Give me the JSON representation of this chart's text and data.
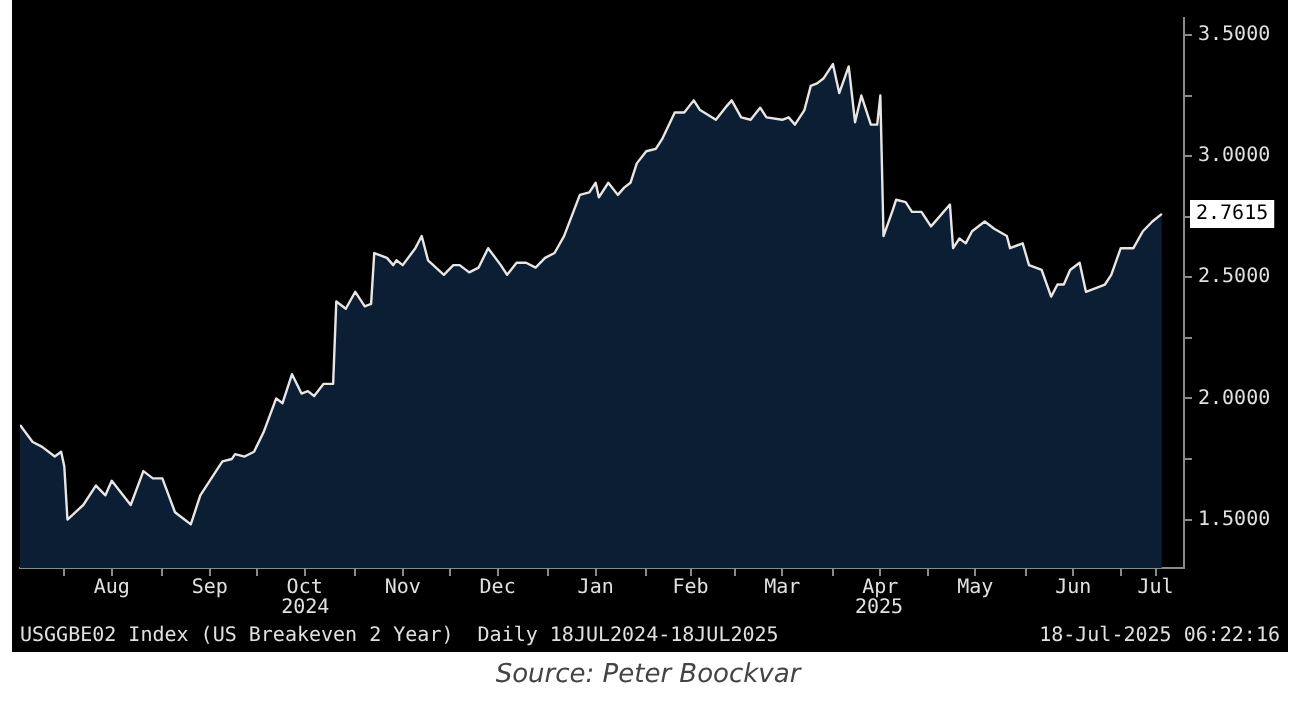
{
  "chart_data": {
    "type": "area",
    "annotations": [
      "2024",
      "2025",
      "USGGBE02 Index (US Breakeven 2 Year)  Daily 18JUL2024-18JUL2025",
      "18-Jul-2025 06:22:16",
      "Source: Peter Boockvar"
    ],
    "x": [
      "2024-07-18",
      "2024-07-22",
      "2024-07-25",
      "2024-07-29",
      "2024-07-31",
      "2024-08-01",
      "2024-08-02",
      "2024-08-07",
      "2024-08-11",
      "2024-08-14",
      "2024-08-16",
      "2024-08-22",
      "2024-08-26",
      "2024-08-29",
      "2024-09-01",
      "2024-09-05",
      "2024-09-08",
      "2024-09-10",
      "2024-09-13",
      "2024-09-17",
      "2024-09-20",
      "2024-09-23",
      "2024-09-24",
      "2024-09-27",
      "2024-09-30",
      "2024-10-03",
      "2024-10-07",
      "2024-10-09",
      "2024-10-12",
      "2024-10-15",
      "2024-10-17",
      "2024-10-19",
      "2024-10-22",
      "2024-10-25",
      "2024-10-26",
      "2024-10-29",
      "2024-11-01",
      "2024-11-04",
      "2024-11-06",
      "2024-11-07",
      "2024-11-11",
      "2024-11-13",
      "2024-11-14",
      "2024-11-16",
      "2024-11-20",
      "2024-11-22",
      "2024-11-24",
      "2024-11-29",
      "2024-12-02",
      "2024-12-04",
      "2024-12-07",
      "2024-12-10",
      "2024-12-13",
      "2024-12-17",
      "2024-12-19",
      "2024-12-22",
      "2024-12-25",
      "2024-12-28",
      "2024-12-31",
      "2025-01-03",
      "2025-01-06",
      "2025-01-11",
      "2025-01-14",
      "2025-01-16",
      "2025-01-17",
      "2025-01-20",
      "2025-01-23",
      "2025-01-25",
      "2025-01-27",
      "2025-01-29",
      "2025-02-01",
      "2025-02-04",
      "2025-02-06",
      "2025-02-10",
      "2025-02-13",
      "2025-02-16",
      "2025-02-18",
      "2025-02-23",
      "2025-02-26",
      "2025-02-28",
      "2025-03-03",
      "2025-03-06",
      "2025-03-09",
      "2025-03-11",
      "2025-03-16",
      "2025-03-18",
      "2025-03-20",
      "2025-03-23",
      "2025-03-25",
      "2025-03-27",
      "2025-03-29",
      "2025-04-01",
      "2025-04-03",
      "2025-04-06",
      "2025-04-08",
      "2025-04-10",
      "2025-04-13",
      "2025-04-15",
      "2025-04-16",
      "2025-04-17",
      "2025-04-20",
      "2025-04-21",
      "2025-04-24",
      "2025-04-26",
      "2025-04-29",
      "2025-05-02",
      "2025-05-04",
      "2025-05-08",
      "2025-05-09",
      "2025-05-11",
      "2025-05-13",
      "2025-05-15",
      "2025-05-19",
      "2025-05-22",
      "2025-05-26",
      "2025-05-27",
      "2025-05-31",
      "2025-06-02",
      "2025-06-06",
      "2025-06-09",
      "2025-06-11",
      "2025-06-13",
      "2025-06-15",
      "2025-06-18",
      "2025-06-20",
      "2025-06-26",
      "2025-06-28",
      "2025-07-01",
      "2025-07-05",
      "2025-07-08",
      "2025-07-11",
      "2025-07-14"
    ],
    "series": [
      {
        "color": "#0b1e33",
        "values": [
          1.89,
          1.82,
          1.8,
          1.76,
          1.78,
          1.72,
          1.5,
          1.56,
          1.64,
          1.6,
          1.66,
          1.56,
          1.7,
          1.67,
          1.67,
          1.53,
          1.5,
          1.48,
          1.6,
          1.68,
          1.74,
          1.75,
          1.77,
          1.76,
          1.78,
          1.86,
          2.0,
          1.98,
          2.1,
          2.02,
          2.03,
          2.01,
          2.06,
          2.06,
          2.4,
          2.37,
          2.44,
          2.38,
          2.39,
          2.6,
          2.58,
          2.55,
          2.57,
          2.55,
          2.62,
          2.67,
          2.57,
          2.51,
          2.55,
          2.55,
          2.52,
          2.54,
          2.62,
          2.55,
          2.51,
          2.56,
          2.56,
          2.54,
          2.58,
          2.6,
          2.67,
          2.84,
          2.85,
          2.89,
          2.83,
          2.89,
          2.84,
          2.87,
          2.89,
          2.97,
          3.02,
          3.03,
          3.07,
          3.18,
          3.18,
          3.23,
          3.19,
          3.15,
          3.2,
          3.23,
          3.16,
          3.15,
          3.2,
          3.16,
          3.15,
          3.16,
          3.13,
          3.19,
          3.29,
          3.3,
          3.32,
          3.38,
          3.26,
          3.37,
          3.14,
          3.25,
          3.13,
          3.13,
          3.25,
          2.67,
          2.78,
          2.82,
          2.81,
          2.77,
          2.77,
          2.71,
          2.74,
          2.8,
          2.62,
          2.66,
          2.64,
          2.69,
          2.73,
          2.7,
          2.67,
          2.62,
          2.64,
          2.55,
          2.53,
          2.42,
          2.47,
          2.47,
          2.53,
          2.56,
          2.44,
          2.47,
          2.51,
          2.62,
          2.62,
          2.69,
          2.73,
          2.7615
        ],
        "value_labels": [
          null,
          null,
          null,
          null,
          null,
          null,
          null,
          null,
          null,
          null,
          null,
          null,
          null,
          null,
          null,
          null,
          null,
          null,
          null,
          null,
          null,
          null,
          null,
          null,
          null,
          null,
          null,
          null,
          null,
          null,
          null,
          null,
          null,
          null,
          null,
          null,
          null,
          null,
          null,
          null,
          null,
          null,
          null,
          null,
          null,
          null,
          null,
          null,
          null,
          null,
          null,
          null,
          null,
          null,
          null,
          null,
          null,
          null,
          null,
          null,
          null,
          null,
          null,
          null,
          null,
          null,
          null,
          null,
          null,
          null,
          null,
          null,
          null,
          null,
          null,
          null,
          null,
          null,
          null,
          null,
          null,
          null,
          null,
          null,
          null,
          null,
          null,
          null,
          null,
          null,
          null,
          null,
          null,
          null,
          null,
          null,
          null,
          null,
          null,
          null,
          null,
          null,
          null,
          null,
          null,
          null,
          null,
          null,
          null,
          null,
          null,
          null,
          null,
          null,
          null,
          null,
          null,
          null,
          null,
          null,
          null,
          null,
          null,
          null,
          null,
          null,
          null,
          null,
          null,
          null,
          null,
          "2.7615"
        ]
      }
    ],
    "xlim": [
      "2024-07-18",
      "2025-07-21"
    ],
    "xticks": [
      {
        "value": "2024-08-01",
        "label": null
      },
      {
        "value": "2024-08-16",
        "label": "Aug"
      },
      {
        "value": "2024-09-01",
        "label": null
      },
      {
        "value": "2024-09-16",
        "label": "Sep"
      },
      {
        "value": "2024-10-01",
        "label": null
      },
      {
        "value": "2024-10-16",
        "label": "Oct"
      },
      {
        "value": "2024-11-01",
        "label": null
      },
      {
        "value": "2024-11-16",
        "label": "Nov"
      },
      {
        "value": "2024-12-01",
        "label": null
      },
      {
        "value": "2024-12-16",
        "label": "Dec"
      },
      {
        "value": "2025-01-01",
        "label": null
      },
      {
        "value": "2025-01-16",
        "label": "Jan"
      },
      {
        "value": "2025-02-01",
        "label": null
      },
      {
        "value": "2025-02-15",
        "label": "Feb"
      },
      {
        "value": "2025-03-01",
        "label": null
      },
      {
        "value": "2025-03-16",
        "label": "Mar"
      },
      {
        "value": "2025-04-01",
        "label": null
      },
      {
        "value": "2025-04-16",
        "label": "Apr"
      },
      {
        "value": "2025-05-01",
        "label": null
      },
      {
        "value": "2025-05-16",
        "label": "May"
      },
      {
        "value": "2025-06-01",
        "label": null
      },
      {
        "value": "2025-06-16",
        "label": "Jun"
      },
      {
        "value": "2025-07-01",
        "label": null
      },
      {
        "value": "2025-07-12",
        "label": "Jul"
      }
    ],
    "ylim": [
      1.3,
      3.57
    ],
    "yticks": [
      {
        "value": 1.5,
        "label": "1.5000"
      },
      {
        "value": 1.75,
        "label": null
      },
      {
        "value": 2.0,
        "label": "2.0000"
      },
      {
        "value": 2.25,
        "label": null
      },
      {
        "value": 2.5,
        "label": "2.5000"
      },
      {
        "value": 2.75,
        "label": null
      },
      {
        "value": 3.0,
        "label": "3.0000"
      },
      {
        "value": 3.25,
        "label": null
      },
      {
        "value": 3.5,
        "label": "3.5000"
      }
    ],
    "grid": false,
    "legend": false
  }
}
